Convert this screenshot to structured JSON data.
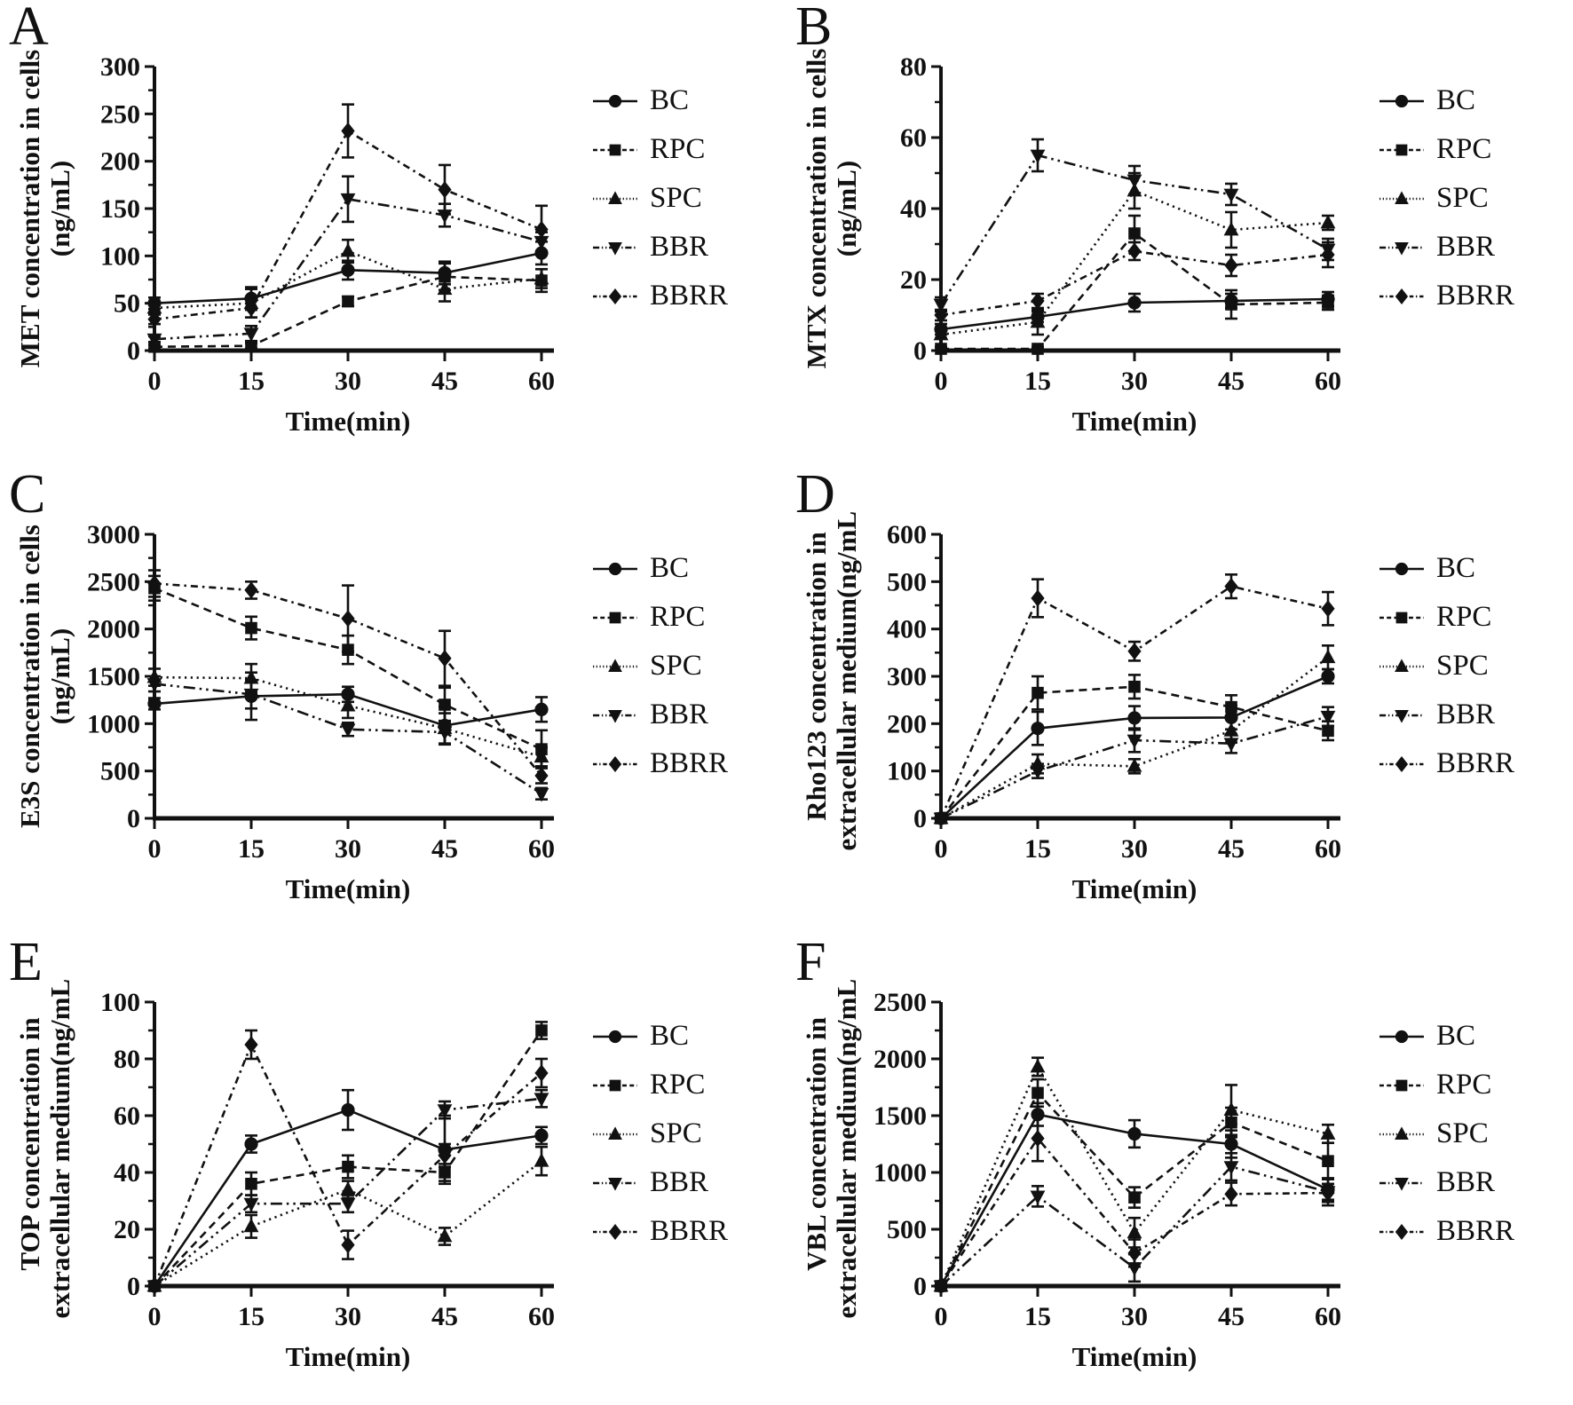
{
  "figure": {
    "background": "#ffffff",
    "ink": "#111111"
  },
  "x_axis": {
    "label": "Time(min)",
    "ticks": [
      0,
      15,
      30,
      45,
      60
    ]
  },
  "legend_labels": [
    "BC",
    "RPC",
    "SPC",
    "BBR",
    "BBRR"
  ],
  "chart_data": [
    {
      "panel": "A",
      "type": "line",
      "ylabel_line1": "MET concentration in cells",
      "ylabel_line2": "(ng/mL)",
      "xlabel": "Time(min)",
      "x": [
        0,
        15,
        30,
        45,
        60
      ],
      "ylim": [
        0,
        300
      ],
      "ystep": 50,
      "legend_position": "right",
      "series": [
        {
          "name": "BC",
          "marker": "circle",
          "line": "solid",
          "values": [
            50,
            55,
            85,
            82,
            103
          ],
          "errors": [
            6,
            12,
            10,
            12,
            12
          ]
        },
        {
          "name": "RPC",
          "marker": "square",
          "line": "dashed",
          "values": [
            4,
            5,
            52,
            78,
            74
          ],
          "errors": [
            2,
            3,
            5,
            14,
            12
          ]
        },
        {
          "name": "SPC",
          "marker": "triangle-up",
          "line": "dotted",
          "values": [
            45,
            50,
            105,
            65,
            76
          ],
          "errors": [
            5,
            15,
            12,
            13,
            10
          ]
        },
        {
          "name": "BBR",
          "marker": "triangle-down",
          "line": "dashdotdot",
          "values": [
            12,
            18,
            160,
            143,
            115
          ],
          "errors": [
            3,
            8,
            24,
            12,
            10
          ]
        },
        {
          "name": "BBRR",
          "marker": "diamond",
          "line": "dashdot",
          "values": [
            33,
            45,
            232,
            170,
            128
          ],
          "errors": [
            5,
            10,
            28,
            26,
            25
          ]
        }
      ]
    },
    {
      "panel": "B",
      "type": "line",
      "ylabel_line1": "MTX concentration in cells",
      "ylabel_line2": "(ng/mL)",
      "xlabel": "Time(min)",
      "x": [
        0,
        15,
        30,
        45,
        60
      ],
      "ylim": [
        0,
        80
      ],
      "ystep": 20,
      "legend_position": "right",
      "series": [
        {
          "name": "BC",
          "marker": "circle",
          "line": "solid",
          "values": [
            6,
            9.5,
            13.5,
            14,
            14.5
          ],
          "errors": [
            1.5,
            1.5,
            2.5,
            2,
            2
          ]
        },
        {
          "name": "RPC",
          "marker": "square",
          "line": "dashed",
          "values": [
            0.5,
            0.5,
            33,
            13,
            13.5
          ],
          "errors": [
            0.5,
            0.5,
            5,
            4,
            2
          ]
        },
        {
          "name": "SPC",
          "marker": "triangle-up",
          "line": "dotted",
          "values": [
            4.5,
            8,
            45,
            34,
            36
          ],
          "errors": [
            1,
            3.5,
            5,
            5,
            2
          ]
        },
        {
          "name": "BBR",
          "marker": "triangle-down",
          "line": "dashdotdot",
          "values": [
            13,
            55,
            48,
            44,
            28.5
          ],
          "errors": [
            2,
            4.5,
            4,
            3,
            3
          ]
        },
        {
          "name": "BBRR",
          "marker": "diamond",
          "line": "dashdot",
          "values": [
            10,
            14,
            28,
            24,
            27
          ],
          "errors": [
            1.5,
            2,
            2.5,
            3,
            3.5
          ]
        }
      ]
    },
    {
      "panel": "C",
      "type": "line",
      "ylabel_line1": "E3S concentration in cells",
      "ylabel_line2": "(ng/mL)",
      "xlabel": "Time(min)",
      "x": [
        0,
        15,
        30,
        45,
        60
      ],
      "ylim": [
        0,
        3000
      ],
      "ystep": 500,
      "legend_position": "right",
      "series": [
        {
          "name": "BC",
          "marker": "circle",
          "line": "solid",
          "values": [
            1210,
            1290,
            1310,
            980,
            1150
          ],
          "errors": [
            60,
            250,
            80,
            200,
            130
          ]
        },
        {
          "name": "RPC",
          "marker": "square",
          "line": "dashed",
          "values": [
            2430,
            2010,
            1780,
            1200,
            730
          ],
          "errors": [
            130,
            120,
            150,
            180,
            200
          ]
        },
        {
          "name": "SPC",
          "marker": "triangle-up",
          "line": "dotted",
          "values": [
            1490,
            1480,
            1190,
            950,
            650
          ],
          "errors": [
            90,
            150,
            130,
            160,
            100
          ]
        },
        {
          "name": "BBR",
          "marker": "triangle-down",
          "line": "dashdotdot",
          "values": [
            1420,
            1310,
            940,
            910,
            260
          ],
          "errors": [
            80,
            150,
            70,
            120,
            60
          ]
        },
        {
          "name": "BBRR",
          "marker": "diamond",
          "line": "dashdot",
          "values": [
            2480,
            2410,
            2110,
            1690,
            450
          ],
          "errors": [
            140,
            90,
            350,
            290,
            80
          ]
        }
      ]
    },
    {
      "panel": "D",
      "type": "line",
      "ylabel_line1": "Rho123 concentration in",
      "ylabel_line2": "extracellular medium(ng/mL)",
      "xlabel": "Time(min)",
      "x": [
        0,
        15,
        30,
        45,
        60
      ],
      "ylim": [
        0,
        600
      ],
      "ystep": 100,
      "legend_position": "right",
      "series": [
        {
          "name": "BC",
          "marker": "circle",
          "line": "solid",
          "values": [
            0,
            190,
            212,
            213,
            300
          ],
          "errors": [
            0,
            35,
            25,
            25,
            15
          ]
        },
        {
          "name": "RPC",
          "marker": "square",
          "line": "dashed",
          "values": [
            0,
            265,
            278,
            235,
            185
          ],
          "errors": [
            0,
            35,
            25,
            25,
            20
          ]
        },
        {
          "name": "SPC",
          "marker": "triangle-up",
          "line": "dotted",
          "values": [
            0,
            115,
            110,
            185,
            340
          ],
          "errors": [
            0,
            20,
            15,
            25,
            25
          ]
        },
        {
          "name": "BBR",
          "marker": "triangle-down",
          "line": "dashdotdot",
          "values": [
            0,
            100,
            165,
            158,
            215
          ],
          "errors": [
            0,
            15,
            25,
            20,
            20
          ]
        },
        {
          "name": "BBRR",
          "marker": "diamond",
          "line": "dashdot",
          "values": [
            0,
            465,
            353,
            490,
            443
          ],
          "errors": [
            0,
            40,
            20,
            25,
            35
          ]
        }
      ]
    },
    {
      "panel": "E",
      "type": "line",
      "ylabel_line1": "TOP concentration in",
      "ylabel_line2": "extracellular medium(ng/mL)",
      "xlabel": "Time(min)",
      "x": [
        0,
        15,
        30,
        45,
        60
      ],
      "ylim": [
        0,
        100
      ],
      "ystep": 20,
      "legend_position": "right",
      "series": [
        {
          "name": "BC",
          "marker": "circle",
          "line": "solid",
          "values": [
            0,
            50,
            62,
            48,
            53
          ],
          "errors": [
            0,
            3,
            7,
            12,
            3
          ]
        },
        {
          "name": "RPC",
          "marker": "square",
          "line": "dashed",
          "values": [
            0,
            36,
            42,
            40,
            90
          ],
          "errors": [
            0,
            4,
            4,
            3,
            3
          ]
        },
        {
          "name": "SPC",
          "marker": "triangle-up",
          "line": "dotted",
          "values": [
            0,
            21,
            34,
            17.5,
            44
          ],
          "errors": [
            0,
            4,
            3,
            3,
            5
          ]
        },
        {
          "name": "BBR",
          "marker": "triangle-down",
          "line": "dashdotdot",
          "values": [
            0,
            29,
            29,
            62,
            66
          ],
          "errors": [
            0,
            3,
            3,
            3,
            3
          ]
        },
        {
          "name": "BBRR",
          "marker": "diamond",
          "line": "dashdot",
          "values": [
            0,
            85,
            14.5,
            46,
            75
          ],
          "errors": [
            0,
            5,
            5,
            4,
            5
          ]
        }
      ]
    },
    {
      "panel": "F",
      "type": "line",
      "ylabel_line1": "VBL concentration in",
      "ylabel_line2": "extracellular medium(ng/mL)",
      "xlabel": "Time(min)",
      "x": [
        0,
        15,
        30,
        45,
        60
      ],
      "ylim": [
        0,
        2500
      ],
      "ystep": 500,
      "legend_position": "right",
      "series": [
        {
          "name": "BC",
          "marker": "circle",
          "line": "solid",
          "values": [
            0,
            1510,
            1340,
            1250,
            850
          ],
          "errors": [
            0,
            100,
            120,
            120,
            90
          ]
        },
        {
          "name": "RPC",
          "marker": "square",
          "line": "dashed",
          "values": [
            0,
            1700,
            780,
            1440,
            1100
          ],
          "errors": [
            0,
            120,
            90,
            130,
            160
          ]
        },
        {
          "name": "SPC",
          "marker": "triangle-up",
          "line": "dotted",
          "values": [
            0,
            1930,
            470,
            1550,
            1340
          ],
          "errors": [
            0,
            80,
            130,
            220,
            80
          ]
        },
        {
          "name": "BBR",
          "marker": "triangle-down",
          "line": "dashdotdot",
          "values": [
            0,
            790,
            160,
            1050,
            830
          ],
          "errors": [
            0,
            90,
            120,
            120,
            120
          ]
        },
        {
          "name": "BBRR",
          "marker": "diamond",
          "line": "dashdot",
          "values": [
            0,
            1300,
            290,
            810,
            820
          ],
          "errors": [
            0,
            200,
            120,
            100,
            80
          ]
        }
      ]
    }
  ]
}
